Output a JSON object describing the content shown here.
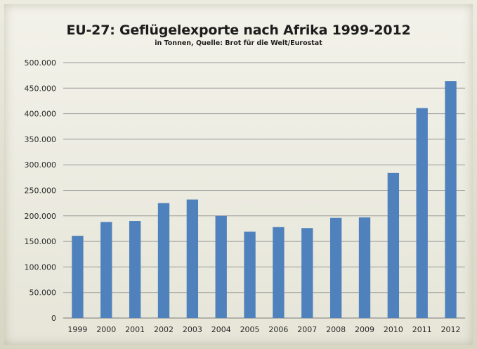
{
  "chart_data": {
    "type": "bar",
    "title": "EU-27: Geflügelexporte nach Afrika 1999-2012",
    "subtitle": "in Tonnen, Quelle: Brot für die Welt/Eurostat",
    "xlabel": "",
    "ylabel": "",
    "categories": [
      "1999",
      "2000",
      "2001",
      "2002",
      "2003",
      "2004",
      "2005",
      "2006",
      "2007",
      "2008",
      "2009",
      "2010",
      "2011",
      "2012"
    ],
    "values": [
      161000,
      188000,
      190000,
      225000,
      232000,
      200000,
      169000,
      178000,
      176000,
      196000,
      197000,
      284000,
      411000,
      464000
    ],
    "ylim": [
      0,
      500000
    ],
    "yticks": [
      0,
      50000,
      100000,
      150000,
      200000,
      250000,
      300000,
      350000,
      400000,
      450000,
      500000
    ],
    "ytick_labels": [
      "0",
      "50.000",
      "100.000",
      "150.000",
      "200.000",
      "250.000",
      "300.000",
      "350.000",
      "400.000",
      "450.000",
      "500.000"
    ],
    "grid": true,
    "legend": "none",
    "colors": {
      "bar": "#4f81bd",
      "grid": "#9a9a9a"
    }
  }
}
